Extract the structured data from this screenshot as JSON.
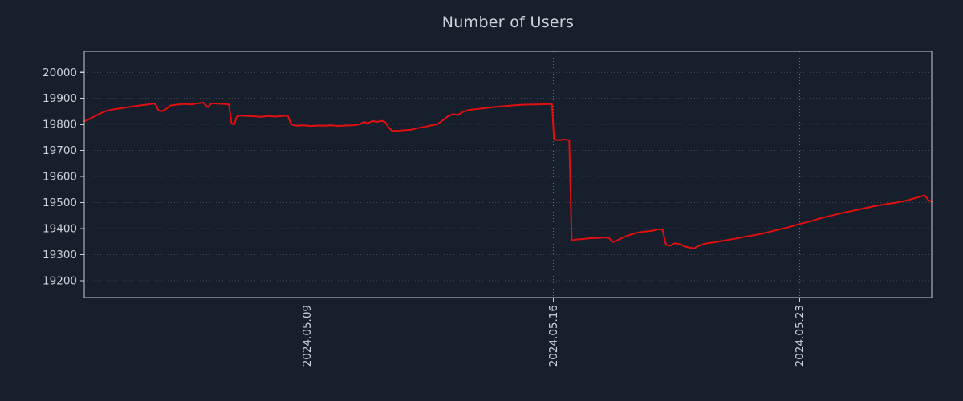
{
  "colors": {
    "background": "#171e2c",
    "line": "#e01010",
    "frame": "#c9ced6",
    "tick_label": "#ccd3db",
    "grid": "#aeb6c2"
  },
  "chart_data": {
    "type": "line",
    "title": "Number of Users",
    "xlabel": "",
    "ylabel": "",
    "x_unit": "day of month, May 2024",
    "xlim": [
      2.67,
      26.75
    ],
    "ylim": [
      19135,
      20081
    ],
    "grid": {
      "linestyle": "dotted",
      "vertical": true,
      "horizontal": true
    },
    "legend": "none",
    "x_ticks": [
      {
        "value": 9,
        "label": "2024.05.09"
      },
      {
        "value": 16,
        "label": "2024.05.16"
      },
      {
        "value": 23,
        "label": "2024.05.23"
      }
    ],
    "y_ticks": [
      19200,
      19300,
      19400,
      19500,
      19600,
      19700,
      19800,
      19900,
      20000
    ],
    "series": [
      {
        "name": "Number of Users",
        "color": "#e01010",
        "x": [
          2.67,
          2.8,
          2.95,
          3.1,
          3.3,
          3.5,
          3.7,
          3.9,
          4.1,
          4.3,
          4.5,
          4.62,
          4.7,
          4.78,
          4.88,
          5.0,
          5.1,
          5.3,
          5.5,
          5.7,
          5.9,
          6.05,
          6.18,
          6.28,
          6.45,
          6.62,
          6.78,
          6.85,
          6.93,
          7.0,
          7.1,
          7.3,
          7.5,
          7.7,
          7.9,
          8.1,
          8.3,
          8.45,
          8.55,
          8.7,
          8.9,
          9.1,
          9.3,
          9.5,
          9.7,
          9.9,
          10.1,
          10.3,
          10.5,
          10.62,
          10.72,
          10.85,
          11.0,
          11.12,
          11.22,
          11.32,
          11.42,
          11.6,
          11.8,
          11.97,
          12.15,
          12.35,
          12.55,
          12.7,
          12.85,
          13.0,
          13.15,
          13.28,
          13.42,
          13.58,
          13.75,
          13.95,
          14.15,
          14.4,
          14.65,
          14.9,
          15.2,
          15.5,
          15.8,
          15.96,
          16.02,
          16.15,
          16.3,
          16.45,
          16.52,
          16.65,
          16.85,
          17.05,
          17.25,
          17.45,
          17.58,
          17.68,
          17.8,
          18.0,
          18.2,
          18.4,
          18.6,
          18.8,
          19.0,
          19.1,
          19.2,
          19.32,
          19.45,
          19.6,
          19.75,
          19.9,
          20.0,
          20.1,
          20.3,
          20.6,
          20.9,
          21.2,
          21.5,
          21.8,
          22.1,
          22.4,
          22.7,
          23.0,
          23.3,
          23.6,
          23.9,
          24.2,
          24.5,
          24.8,
          25.1,
          25.4,
          25.7,
          26.0,
          26.2,
          26.4,
          26.55,
          26.65,
          26.75
        ],
        "y": [
          19812,
          19820,
          19830,
          19841,
          19852,
          19858,
          19862,
          19866,
          19870,
          19874,
          19877,
          19880,
          19877,
          19853,
          19851,
          19860,
          19872,
          19876,
          19879,
          19877,
          19881,
          19884,
          19866,
          19881,
          19880,
          19879,
          19877,
          19806,
          19800,
          19830,
          19834,
          19832,
          19831,
          19829,
          19832,
          19830,
          19832,
          19834,
          19800,
          19795,
          19797,
          19794,
          19796,
          19795,
          19797,
          19794,
          19796,
          19797,
          19801,
          19810,
          19804,
          19813,
          19810,
          19814,
          19809,
          19788,
          19775,
          19776,
          19778,
          19780,
          19786,
          19791,
          19797,
          19801,
          19815,
          19831,
          19840,
          19836,
          19847,
          19855,
          19858,
          19861,
          19864,
          19868,
          19871,
          19874,
          19876,
          19877,
          19878,
          19878,
          19742,
          19740,
          19742,
          19740,
          19355,
          19358,
          19360,
          19363,
          19364,
          19366,
          19364,
          19348,
          19354,
          19367,
          19377,
          19385,
          19389,
          19391,
          19398,
          19396,
          19337,
          19334,
          19344,
          19340,
          19330,
          19326,
          19324,
          19332,
          19342,
          19348,
          19355,
          19362,
          19370,
          19377,
          19386,
          19396,
          19406,
          19418,
          19428,
          19440,
          19450,
          19460,
          19468,
          19477,
          19486,
          19493,
          19499,
          19507,
          19514,
          19522,
          19528,
          19510,
          19503
        ]
      }
    ]
  }
}
